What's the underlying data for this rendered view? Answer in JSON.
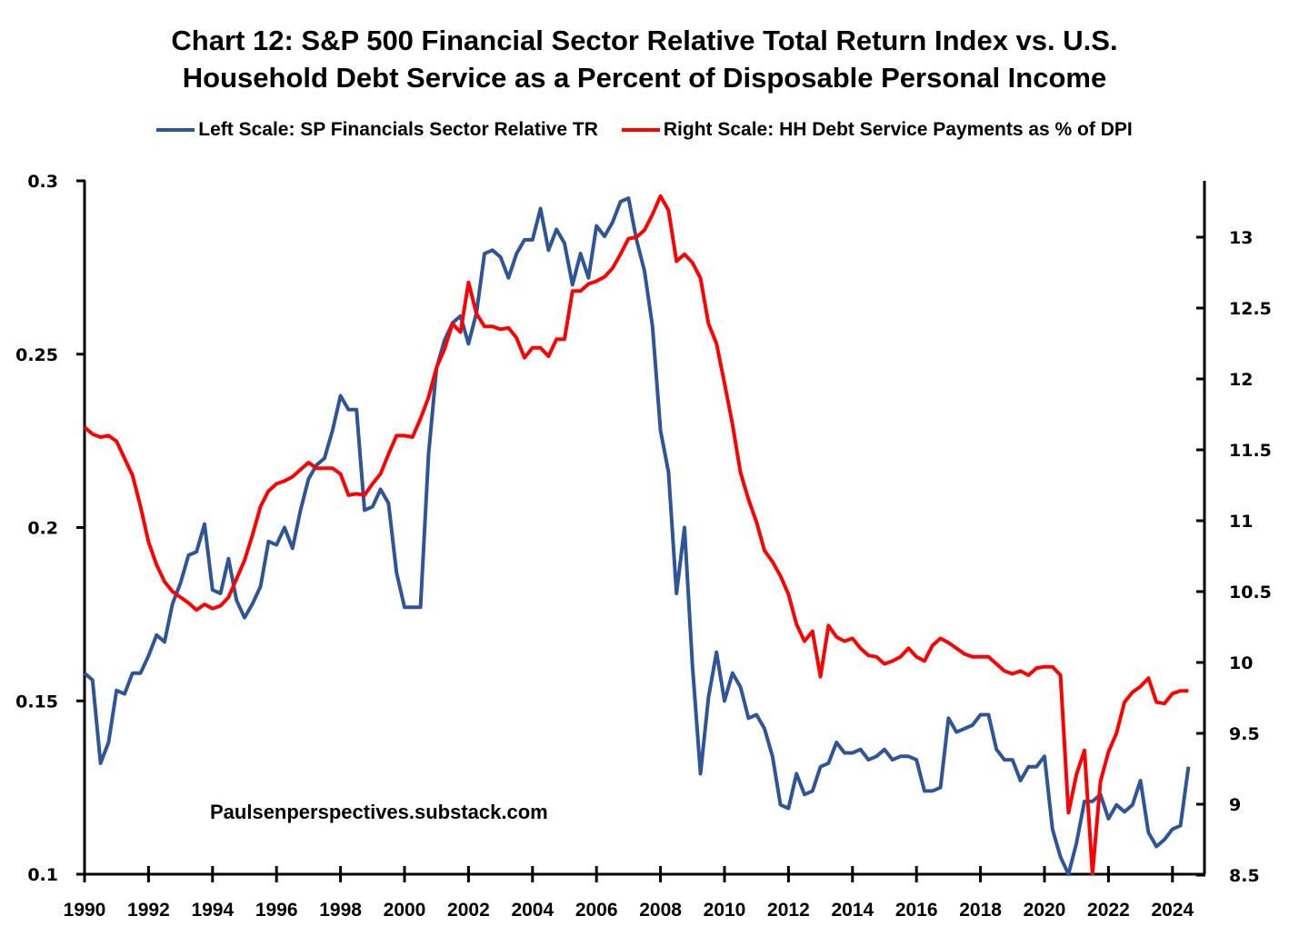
{
  "chart_data": {
    "type": "line",
    "title": "Chart 12: S&P 500 Financial Sector Relative Total Return Index vs. U.S. Household Debt Service as a Percent of Disposable Personal Income",
    "title_lines": [
      "Chart 12: S&P 500 Financial Sector Relative Total Return Index vs. U.S.",
      "Household Debt Service as a Percent of Disposable Personal Income"
    ],
    "legend_position": "top",
    "annotation": "Paulsenperspectives.substack.com",
    "xlabel": "",
    "ylabel_left": "",
    "ylabel_right": "",
    "xlim": [
      1990,
      2025
    ],
    "ylim_left": [
      0.1,
      0.3
    ],
    "ylim_right": [
      8.5,
      13.4
    ],
    "grid": false,
    "x_ticks": [
      "1990",
      "1992",
      "1994",
      "1996",
      "1998",
      "2000",
      "2002",
      "2004",
      "2006",
      "2008",
      "2010",
      "2012",
      "2014",
      "2016",
      "2018",
      "2020",
      "2022",
      "2024"
    ],
    "y_left_ticks": [
      "0.1",
      "0.15",
      "0.2",
      "0.25",
      "0.3"
    ],
    "y_right_ticks": [
      "8.5",
      "9",
      "9.5",
      "10",
      "10.5",
      "11",
      "11.5",
      "12",
      "12.5",
      "13"
    ],
    "x_start": 1990,
    "x_step": 0.25,
    "series": [
      {
        "name": "Left Scale: SP Financials Sector Relative TR",
        "axis": "left",
        "color": "#2F5597",
        "values": [
          0.158,
          0.156,
          0.132,
          0.138,
          0.153,
          0.152,
          0.158,
          0.158,
          0.163,
          0.169,
          0.167,
          0.178,
          0.184,
          0.192,
          0.193,
          0.201,
          0.182,
          0.181,
          0.191,
          0.179,
          0.174,
          0.178,
          0.183,
          0.196,
          0.195,
          0.2,
          0.194,
          0.205,
          0.214,
          0.218,
          0.22,
          0.228,
          0.238,
          0.234,
          0.234,
          0.205,
          0.206,
          0.211,
          0.207,
          0.187,
          0.177,
          0.177,
          0.177,
          0.221,
          0.246,
          0.254,
          0.259,
          0.261,
          0.253,
          0.262,
          0.279,
          0.28,
          0.278,
          0.272,
          0.279,
          0.283,
          0.283,
          0.292,
          0.28,
          0.286,
          0.282,
          0.27,
          0.279,
          0.272,
          0.287,
          0.284,
          0.288,
          0.294,
          0.295,
          0.283,
          0.274,
          0.258,
          0.228,
          0.216,
          0.181,
          0.2,
          0.16,
          0.129,
          0.151,
          0.164,
          0.15,
          0.158,
          0.154,
          0.145,
          0.146,
          0.142,
          0.134,
          0.12,
          0.119,
          0.129,
          0.123,
          0.124,
          0.131,
          0.132,
          0.138,
          0.135,
          0.135,
          0.136,
          0.133,
          0.134,
          0.136,
          0.133,
          0.134,
          0.134,
          0.133,
          0.124,
          0.124,
          0.125,
          0.145,
          0.141,
          0.142,
          0.143,
          0.146,
          0.146,
          0.136,
          0.133,
          0.133,
          0.127,
          0.131,
          0.131,
          0.134,
          0.113,
          0.105,
          0.1,
          0.109,
          0.121,
          0.121,
          0.123,
          0.116,
          0.12,
          0.118,
          0.12,
          0.127,
          0.112,
          0.108,
          0.11,
          0.113,
          0.114,
          0.131
        ]
      },
      {
        "name": "Right Scale: HH Debt Service Payments as % of DPI",
        "axis": "right",
        "color": "#FF0000",
        "values": [
          11.66,
          11.61,
          11.59,
          11.6,
          11.56,
          11.44,
          11.32,
          11.1,
          10.85,
          10.69,
          10.57,
          10.5,
          10.46,
          10.42,
          10.37,
          10.41,
          10.38,
          10.4,
          10.46,
          10.59,
          10.72,
          10.9,
          11.1,
          11.21,
          11.26,
          11.28,
          11.31,
          11.36,
          11.41,
          11.37,
          11.37,
          11.37,
          11.33,
          11.18,
          11.19,
          11.18,
          11.26,
          11.33,
          11.47,
          11.6,
          11.6,
          11.59,
          11.72,
          11.87,
          12.08,
          12.21,
          12.39,
          12.33,
          12.68,
          12.46,
          12.37,
          12.37,
          12.35,
          12.36,
          12.29,
          12.15,
          12.22,
          12.22,
          12.16,
          12.28,
          12.28,
          12.62,
          12.62,
          12.67,
          12.69,
          12.72,
          12.78,
          12.88,
          12.99,
          13.0,
          13.05,
          13.16,
          13.29,
          13.19,
          12.83,
          12.88,
          12.82,
          12.71,
          12.39,
          12.25,
          11.97,
          11.68,
          11.34,
          11.15,
          10.99,
          10.79,
          10.71,
          10.61,
          10.48,
          10.27,
          10.15,
          10.22,
          9.9,
          10.26,
          10.18,
          10.15,
          10.17,
          10.1,
          10.05,
          10.04,
          9.99,
          10.01,
          10.04,
          10.1,
          10.04,
          10.01,
          10.12,
          10.17,
          10.14,
          10.1,
          10.06,
          10.04,
          10.04,
          10.04,
          9.99,
          9.94,
          9.92,
          9.94,
          9.91,
          9.96,
          9.97,
          9.97,
          9.91,
          8.94,
          9.21,
          9.38,
          8.51,
          9.16,
          9.37,
          9.5,
          9.72,
          9.79,
          9.83,
          9.89,
          9.72,
          9.71,
          9.78,
          9.8,
          9.8
        ]
      }
    ]
  }
}
